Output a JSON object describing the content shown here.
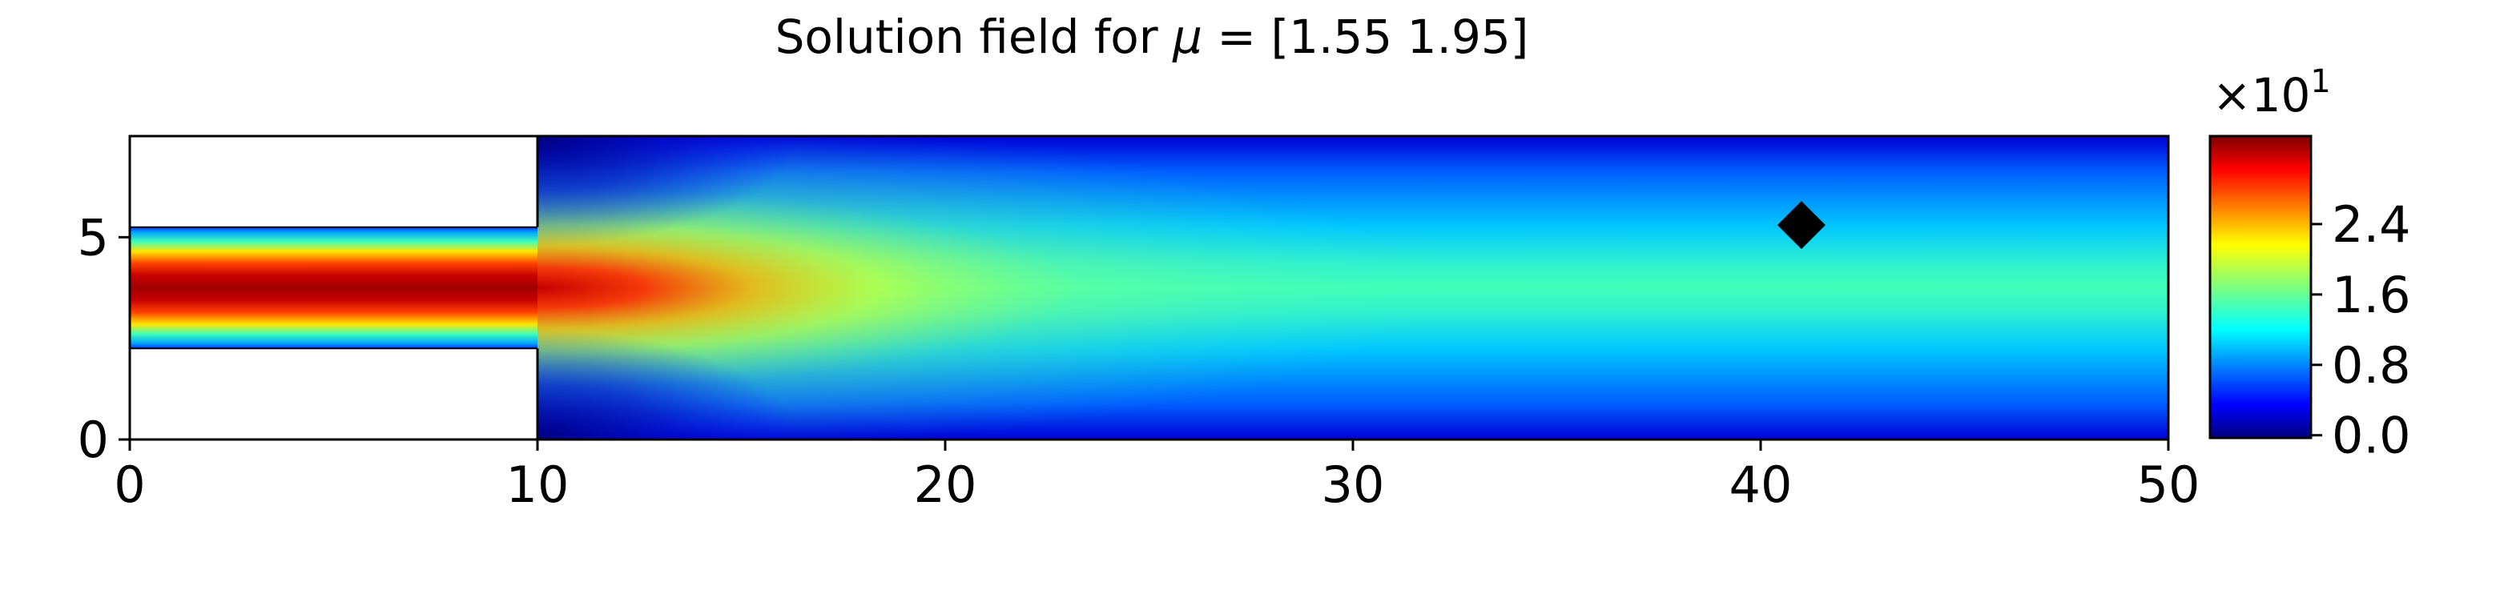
{
  "chart_data": {
    "type": "heatmap",
    "title_prefix": "Solution field for ",
    "title_symbol": "μ",
    "title_suffix": " = [1.55 1.95]",
    "xlim": [
      0,
      50
    ],
    "ylim": [
      0,
      7.5
    ],
    "x_ticks": [
      0,
      10,
      20,
      30,
      40,
      50
    ],
    "x_tick_labels": [
      "0",
      "10",
      "20",
      "30",
      "40",
      "50"
    ],
    "y_ticks": [
      0,
      5
    ],
    "y_tick_labels": [
      "0",
      "5"
    ],
    "grid": false,
    "colormap": "jet",
    "geometry": {
      "inlet_x_end": 10,
      "inlet_y_range": [
        2.25,
        5.25
      ],
      "channel_x_range": [
        10,
        50
      ],
      "channel_y_range": [
        0,
        7.5
      ]
    },
    "marker": {
      "shape": "diamond",
      "x": 41,
      "y": 5.3,
      "color": "#000000"
    },
    "colorbar": {
      "range": [
        -0.03,
        3.4
      ],
      "ticks": [
        0.0,
        0.8,
        1.6,
        2.4
      ],
      "tick_labels": [
        "0.0",
        "0.8",
        "1.6",
        "2.4"
      ],
      "scale_label_base": "×10",
      "scale_label_exp": "1"
    }
  }
}
